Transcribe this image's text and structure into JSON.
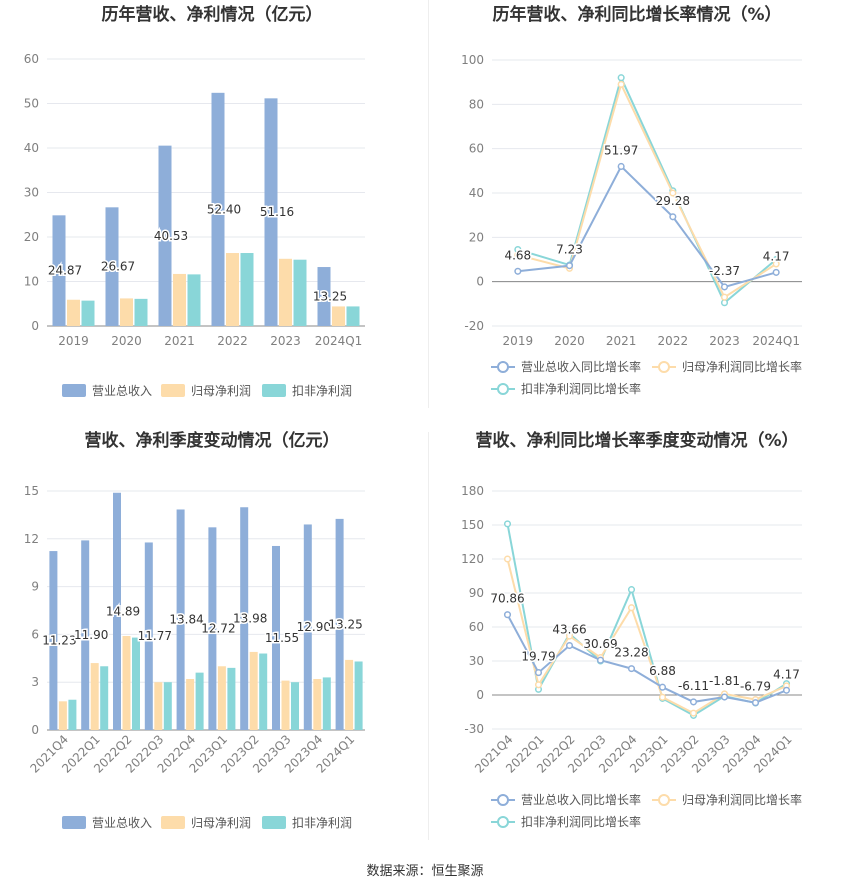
{
  "source_text": "数据来源：恒生聚源",
  "colors": {
    "revenue": "#8eaed9",
    "net_profit": "#fddcaa",
    "deducted_net_profit": "#89d6d8",
    "grid": "#e6e8ee",
    "axis_text": "#7f7f7f",
    "title": "#333333",
    "label": "#333333"
  },
  "chart_data": [
    {
      "type": "bar",
      "title": "历年营收、净利情况（亿元）",
      "categories": [
        "2019",
        "2020",
        "2021",
        "2022",
        "2023",
        "2024Q1"
      ],
      "ylim": [
        0,
        60
      ],
      "yticks": [
        0,
        10,
        20,
        30,
        40,
        50,
        60
      ],
      "grid": true,
      "legend_position": "bottom",
      "series": [
        {
          "name": "营业总收入",
          "values": [
            24.87,
            26.67,
            40.53,
            52.4,
            51.16,
            13.25
          ],
          "labels": [
            "24.87",
            "26.67",
            "40.53",
            "52.40",
            "51.16",
            "13.25"
          ]
        },
        {
          "name": "归母净利润",
          "values": [
            5.9,
            6.2,
            11.7,
            16.4,
            15.1,
            4.4
          ]
        },
        {
          "name": "扣非净利润",
          "values": [
            5.7,
            6.1,
            11.6,
            16.4,
            14.9,
            4.4
          ]
        }
      ]
    },
    {
      "type": "line",
      "title": "历年营收、净利同比增长率情况（%）",
      "categories": [
        "2019",
        "2020",
        "2021",
        "2022",
        "2023",
        "2024Q1"
      ],
      "ylim": [
        -20,
        100
      ],
      "yticks": [
        -20,
        0,
        20,
        40,
        60,
        80,
        100
      ],
      "grid": true,
      "legend_position": "bottom",
      "series": [
        {
          "name": "营业总收入同比增长率",
          "values": [
            4.68,
            7.23,
            51.97,
            29.28,
            -2.37,
            4.17
          ],
          "labels": [
            "4.68",
            "7.23",
            "51.97",
            "29.28",
            "-2.37",
            "4.17"
          ]
        },
        {
          "name": "归母净利润同比增长率",
          "values": [
            12.0,
            6.0,
            89.0,
            40.0,
            -7.0,
            8.0
          ]
        },
        {
          "name": "扣非净利润同比增长率",
          "values": [
            14.5,
            7.5,
            92.0,
            41.0,
            -9.5,
            10.0
          ]
        }
      ]
    },
    {
      "type": "bar",
      "title": "营收、净利季度变动情况（亿元）",
      "categories": [
        "2021Q4",
        "2022Q1",
        "2022Q2",
        "2022Q3",
        "2022Q4",
        "2023Q1",
        "2023Q2",
        "2023Q3",
        "2023Q4",
        "2024Q1"
      ],
      "ylim": [
        0,
        15
      ],
      "yticks": [
        0,
        3,
        6,
        9,
        12,
        15
      ],
      "grid": true,
      "legend_position": "bottom",
      "series": [
        {
          "name": "营业总收入",
          "values": [
            11.23,
            11.9,
            14.89,
            11.77,
            13.84,
            12.72,
            13.98,
            11.55,
            12.9,
            13.25
          ],
          "labels": [
            "11.23",
            "11.90",
            "14.89",
            "11.77",
            "13.84",
            "12.72",
            "13.98",
            "11.55",
            "12.90",
            "13.25"
          ]
        },
        {
          "name": "归母净利润",
          "values": [
            1.8,
            4.2,
            5.9,
            3.0,
            3.2,
            4.0,
            4.9,
            3.1,
            3.2,
            4.4
          ]
        },
        {
          "name": "扣非净利润",
          "values": [
            1.9,
            4.0,
            5.8,
            3.0,
            3.6,
            3.9,
            4.8,
            3.0,
            3.3,
            4.3
          ]
        }
      ]
    },
    {
      "type": "line",
      "title": "营收、净利同比增长率季度变动情况（%）",
      "categories": [
        "2021Q4",
        "2022Q1",
        "2022Q2",
        "2022Q3",
        "2022Q4",
        "2023Q1",
        "2023Q2",
        "2023Q3",
        "2023Q4",
        "2024Q1"
      ],
      "ylim": [
        -30,
        180
      ],
      "yticks": [
        -30,
        0,
        30,
        60,
        90,
        120,
        150,
        180
      ],
      "grid": true,
      "legend_position": "bottom",
      "series": [
        {
          "name": "营业总收入同比增长率",
          "values": [
            70.86,
            19.79,
            43.66,
            30.69,
            23.28,
            6.88,
            -6.11,
            -1.81,
            -6.79,
            4.17
          ],
          "labels": [
            "70.86",
            "19.79",
            "43.66",
            "30.69",
            "23.28",
            "6.88",
            "-6.11",
            "-1.81",
            "-6.79",
            "4.17"
          ]
        },
        {
          "name": "归母净利润同比增长率",
          "values": [
            120.0,
            9.0,
            52.0,
            33.0,
            77.0,
            -2.0,
            -16.0,
            1.0,
            -4.0,
            8.0
          ]
        },
        {
          "name": "扣非净利润同比增长率",
          "values": [
            151.0,
            5.0,
            54.0,
            30.0,
            93.0,
            -3.0,
            -18.0,
            -1.0,
            -7.0,
            10.0
          ]
        }
      ]
    }
  ]
}
